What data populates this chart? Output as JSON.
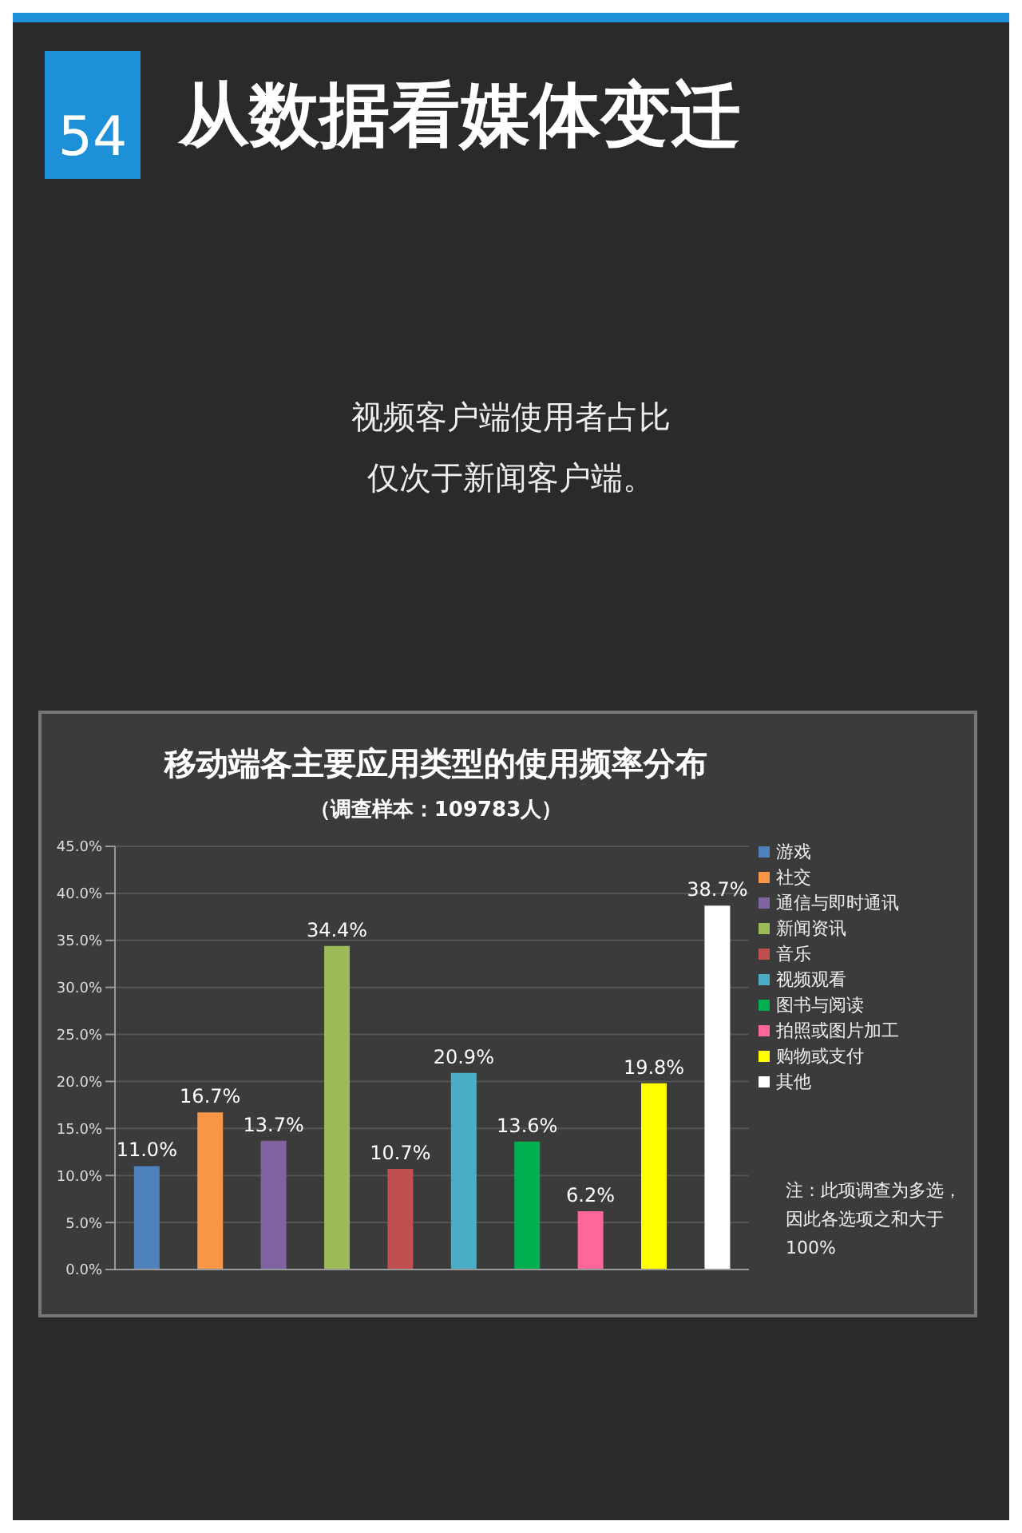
{
  "chart_data": {
    "type": "bar",
    "title": "移动端各主要应用类型的使用频率分布",
    "subtitle": "（调查样本：109783人）",
    "annotations": [
      "54",
      "从数据看媒体变迁",
      "视频客户端使用者占比",
      "仅次于新闻客户端。",
      "注：此项调查为多选，因此各选项之和大于100%"
    ],
    "categories": [
      null,
      null,
      null,
      null,
      null,
      null,
      null,
      null,
      null,
      null
    ],
    "stacked": true,
    "series": [
      {
        "name": "游戏",
        "color": "#4f81bd",
        "values": [
          11.0,
          null,
          null,
          null,
          null,
          null,
          null,
          null,
          null,
          null
        ],
        "value_labels": [
          "11.0%",
          null,
          null,
          null,
          null,
          null,
          null,
          null,
          null,
          null
        ]
      },
      {
        "name": "社交",
        "color": "#f79646",
        "values": [
          null,
          16.7,
          null,
          null,
          null,
          null,
          null,
          null,
          null,
          null
        ],
        "value_labels": [
          null,
          "16.7%",
          null,
          null,
          null,
          null,
          null,
          null,
          null,
          null
        ]
      },
      {
        "name": "通信与即时通讯",
        "color": "#8064a2",
        "values": [
          null,
          null,
          13.7,
          null,
          null,
          null,
          null,
          null,
          null,
          null
        ],
        "value_labels": [
          null,
          null,
          "13.7%",
          null,
          null,
          null,
          null,
          null,
          null,
          null
        ]
      },
      {
        "name": "新闻资讯",
        "color": "#9bbb59",
        "values": [
          null,
          null,
          null,
          34.4,
          null,
          null,
          null,
          null,
          null,
          null
        ],
        "value_labels": [
          null,
          null,
          null,
          "34.4%",
          null,
          null,
          null,
          null,
          null,
          null
        ]
      },
      {
        "name": "音乐",
        "color": "#c0504d",
        "values": [
          null,
          null,
          null,
          null,
          10.7,
          null,
          null,
          null,
          null,
          null
        ],
        "value_labels": [
          null,
          null,
          null,
          null,
          "10.7%",
          null,
          null,
          null,
          null,
          null
        ]
      },
      {
        "name": "视频观看",
        "color": "#4bacc6",
        "values": [
          null,
          null,
          null,
          null,
          null,
          20.9,
          null,
          null,
          null,
          null
        ],
        "value_labels": [
          null,
          null,
          null,
          null,
          null,
          "20.9%",
          null,
          null,
          null,
          null
        ]
      },
      {
        "name": "图书与阅读",
        "color": "#00b050",
        "values": [
          null,
          null,
          null,
          null,
          null,
          null,
          13.6,
          null,
          null,
          null
        ],
        "value_labels": [
          null,
          null,
          null,
          null,
          null,
          null,
          "13.6%",
          null,
          null,
          null
        ]
      },
      {
        "name": "拍照或图片加工",
        "color": "#ff6699",
        "values": [
          null,
          null,
          null,
          null,
          null,
          null,
          null,
          6.2,
          null,
          null
        ],
        "value_labels": [
          null,
          null,
          null,
          null,
          null,
          null,
          null,
          "6.2%",
          null,
          null
        ]
      },
      {
        "name": "购物或支付",
        "color": "#ffff00",
        "values": [
          null,
          null,
          null,
          null,
          null,
          null,
          null,
          null,
          19.8,
          null
        ],
        "value_labels": [
          null,
          null,
          null,
          null,
          null,
          null,
          null,
          null,
          "19.8%",
          null
        ]
      },
      {
        "name": "其他",
        "color": "#ffffff",
        "values": [
          null,
          null,
          null,
          null,
          null,
          null,
          null,
          null,
          null,
          38.7
        ],
        "value_labels": [
          null,
          null,
          null,
          null,
          null,
          null,
          null,
          null,
          null,
          "38.7%"
        ]
      }
    ],
    "ylim": [
      0,
      45
    ],
    "yticks": [
      {
        "value": 0,
        "label": "0.0%"
      },
      {
        "value": 5,
        "label": "5.0%"
      },
      {
        "value": 10,
        "label": "10.0%"
      },
      {
        "value": 15,
        "label": "15.0%"
      },
      {
        "value": 20,
        "label": "20.0%"
      },
      {
        "value": 25,
        "label": "25.0%"
      },
      {
        "value": 30,
        "label": "30.0%"
      },
      {
        "value": 35,
        "label": "35.0%"
      },
      {
        "value": 40,
        "label": "40.0%"
      },
      {
        "value": 45,
        "label": "45.0%"
      }
    ],
    "grid": "y",
    "legend": "right",
    "tick_labels": "y"
  }
}
